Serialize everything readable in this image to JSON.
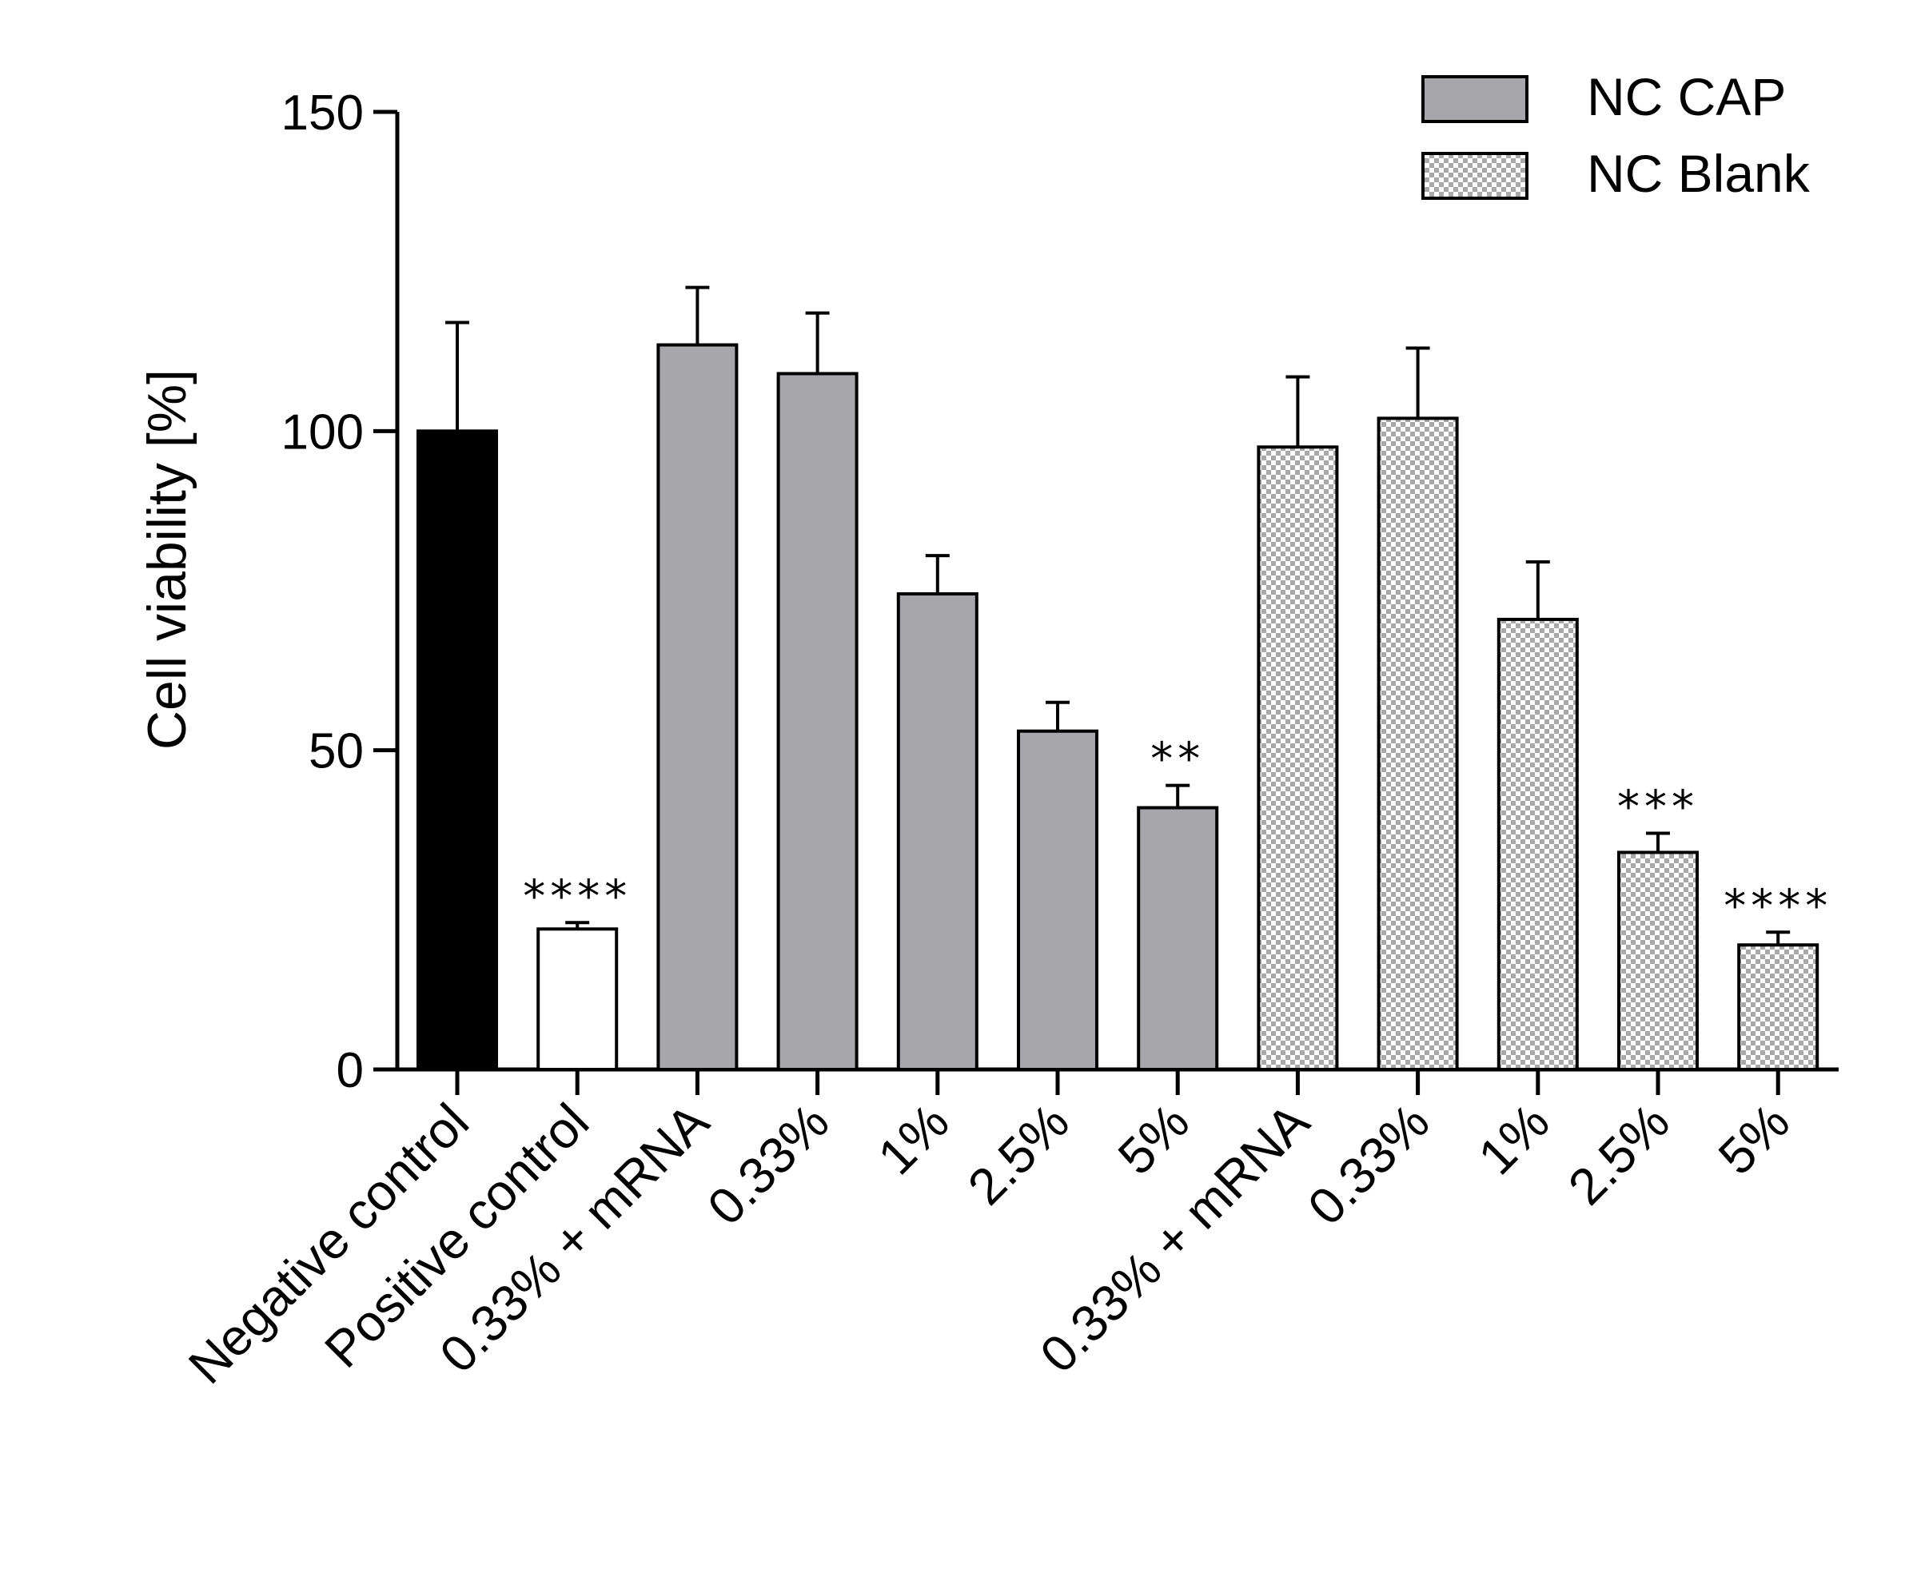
{
  "chart_data": {
    "type": "bar",
    "title": "",
    "xlabel": "",
    "ylabel": "Cell viability [%]",
    "ylim": [
      0,
      150
    ],
    "yticks": [
      0,
      50,
      100,
      150
    ],
    "grid": false,
    "legend_position": "top-right",
    "legend": [
      {
        "name": "NC CAP",
        "fill": "#a7a7ab",
        "pattern": "solid"
      },
      {
        "name": "NC Blank",
        "fill": "#c6c6c6",
        "pattern": "checker"
      }
    ],
    "categories": [
      "Negative control",
      "Positive control",
      "0.33% + mRNA",
      "0.33%",
      "1%",
      "2.5%",
      "5%",
      "0.33% + mRNA",
      "0.33%",
      "1%",
      "2.5%",
      "5%"
    ],
    "groups": [
      "control",
      "control",
      "NC CAP",
      "NC CAP",
      "NC CAP",
      "NC CAP",
      "NC CAP",
      "NC Blank",
      "NC Blank",
      "NC Blank",
      "NC Blank",
      "NC Blank"
    ],
    "values": [
      100,
      22,
      113.5,
      109,
      74.5,
      53,
      41,
      97.5,
      102,
      70.5,
      34,
      19.5
    ],
    "errors": [
      17,
      1,
      9,
      9.5,
      6,
      4.5,
      3.5,
      11,
      11,
      9,
      3,
      2
    ],
    "significance": [
      "",
      "****",
      "",
      "",
      "",
      "",
      "**",
      "",
      "",
      "",
      "***",
      "****"
    ],
    "colors": {
      "negative_control": "#000000",
      "positive_control": "#ffffff",
      "nc_cap": "#a7a7ab",
      "nc_blank_light": "#ffffff",
      "nc_blank_dark": "#a9a9a9",
      "axis": "#000000"
    }
  }
}
